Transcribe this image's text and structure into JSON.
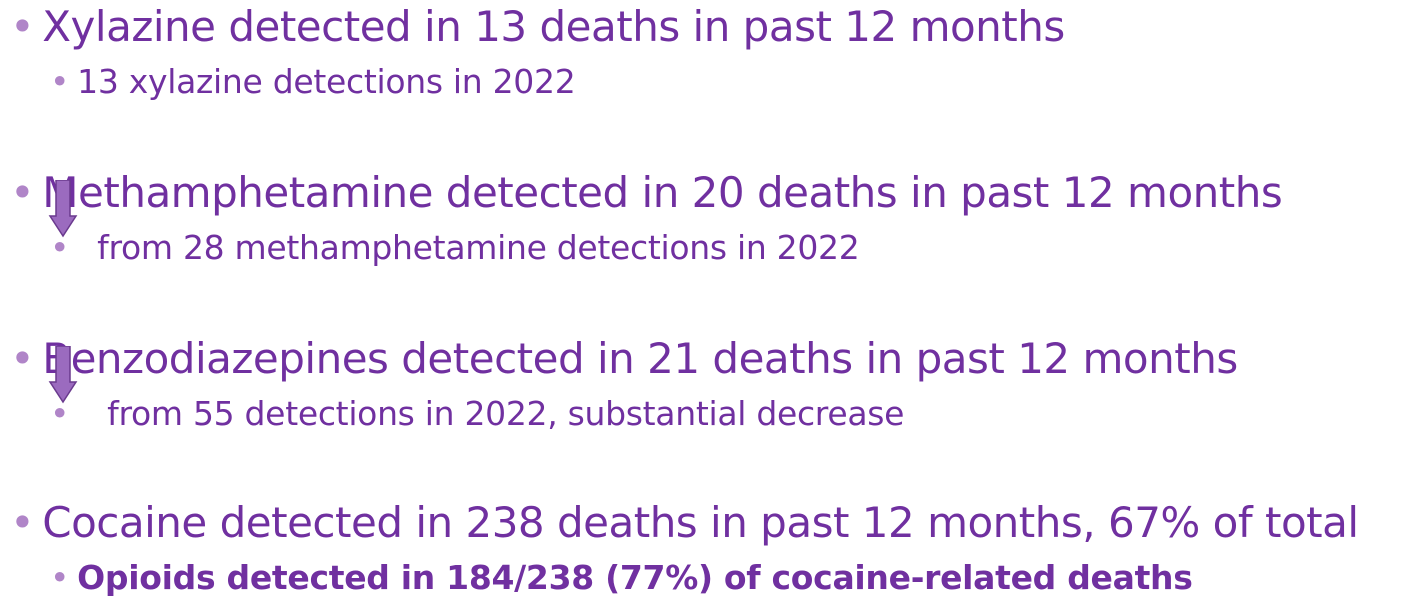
{
  "items": [
    {
      "text": "Xylazine detected in 13 deaths in past 12 months",
      "sub": "13 xylazine detections in 2022"
    },
    {
      "text": "Methamphetamine  detected in 20 deaths in past 12 months",
      "sub": "from 28 methamphetamine detections in 2022"
    },
    {
      "text": "Benzodiazepines detected in 21 deaths in past 12 months",
      "sub": "from 55 detections in 2022, substantial decrease"
    },
    {
      "text": "Cocaine detected in 238 deaths in past 12 months, 67% of total",
      "sub": "Opioids detected in 184/238 (77%) of cocaine-related deaths"
    }
  ]
}
